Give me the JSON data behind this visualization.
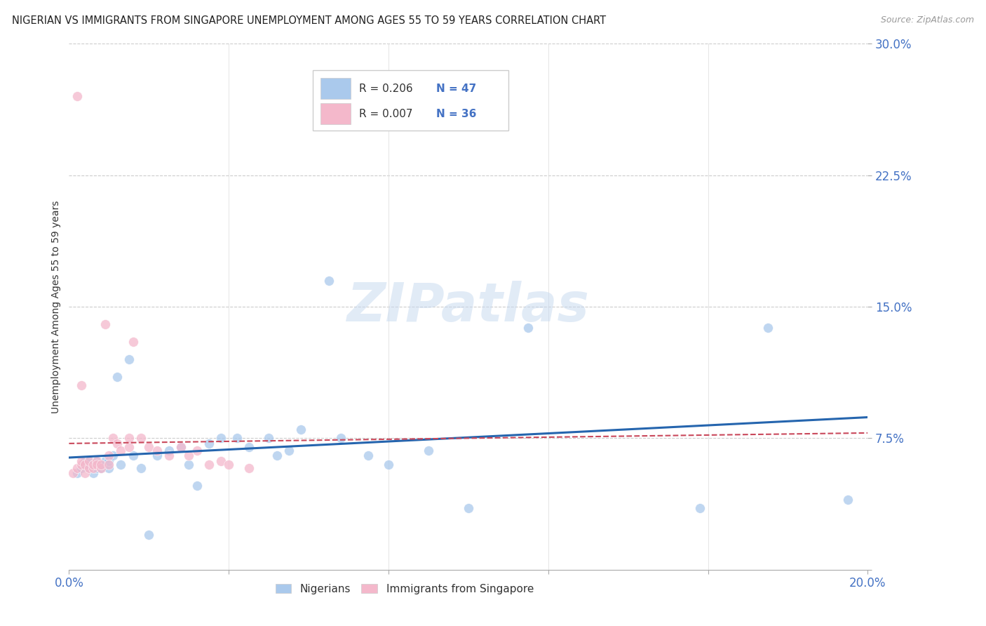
{
  "title": "NIGERIAN VS IMMIGRANTS FROM SINGAPORE UNEMPLOYMENT AMONG AGES 55 TO 59 YEARS CORRELATION CHART",
  "source": "Source: ZipAtlas.com",
  "ylabel": "Unemployment Among Ages 55 to 59 years",
  "xlim": [
    0.0,
    0.2
  ],
  "ylim": [
    0.0,
    0.3
  ],
  "xticks": [
    0.0,
    0.04,
    0.08,
    0.12,
    0.16,
    0.2
  ],
  "xticklabels": [
    "0.0%",
    "",
    "",
    "",
    "",
    "20.0%"
  ],
  "yticks": [
    0.0,
    0.075,
    0.15,
    0.225,
    0.3
  ],
  "yticklabels": [
    "",
    "7.5%",
    "15.0%",
    "22.5%",
    "30.0%"
  ],
  "nigerians_R": 0.206,
  "nigerians_N": 47,
  "singapore_R": 0.007,
  "singapore_N": 36,
  "nigerians_color": "#aac9ec",
  "singapore_color": "#f4b8cb",
  "trend_nigerian_color": "#2565ae",
  "trend_singapore_color": "#c9485b",
  "background_color": "#ffffff",
  "watermark": "ZIPatlas",
  "legend_label_nigerian": "Nigerians",
  "legend_label_singapore": "Immigrants from Singapore",
  "nig_x": [
    0.002,
    0.003,
    0.004,
    0.004,
    0.005,
    0.005,
    0.005,
    0.006,
    0.006,
    0.007,
    0.007,
    0.008,
    0.008,
    0.009,
    0.009,
    0.01,
    0.01,
    0.011,
    0.012,
    0.013,
    0.015,
    0.016,
    0.018,
    0.02,
    0.022,
    0.025,
    0.028,
    0.03,
    0.032,
    0.035,
    0.038,
    0.042,
    0.045,
    0.05,
    0.052,
    0.055,
    0.058,
    0.065,
    0.068,
    0.075,
    0.08,
    0.09,
    0.1,
    0.115,
    0.158,
    0.175,
    0.195
  ],
  "nig_y": [
    0.055,
    0.058,
    0.06,
    0.062,
    0.058,
    0.06,
    0.062,
    0.055,
    0.06,
    0.058,
    0.062,
    0.058,
    0.06,
    0.06,
    0.062,
    0.058,
    0.062,
    0.065,
    0.11,
    0.06,
    0.12,
    0.065,
    0.058,
    0.02,
    0.065,
    0.068,
    0.07,
    0.06,
    0.048,
    0.072,
    0.075,
    0.075,
    0.07,
    0.075,
    0.065,
    0.068,
    0.08,
    0.165,
    0.075,
    0.065,
    0.06,
    0.068,
    0.035,
    0.138,
    0.035,
    0.138,
    0.04
  ],
  "sing_x": [
    0.001,
    0.002,
    0.003,
    0.003,
    0.004,
    0.004,
    0.005,
    0.005,
    0.006,
    0.006,
    0.007,
    0.007,
    0.008,
    0.008,
    0.009,
    0.01,
    0.01,
    0.011,
    0.012,
    0.013,
    0.015,
    0.015,
    0.016,
    0.018,
    0.02,
    0.022,
    0.025,
    0.028,
    0.03,
    0.032,
    0.035,
    0.038,
    0.04,
    0.045,
    0.002,
    0.003
  ],
  "sing_y": [
    0.055,
    0.058,
    0.06,
    0.062,
    0.055,
    0.06,
    0.058,
    0.062,
    0.058,
    0.06,
    0.062,
    0.06,
    0.058,
    0.06,
    0.14,
    0.065,
    0.06,
    0.075,
    0.072,
    0.068,
    0.07,
    0.075,
    0.13,
    0.075,
    0.07,
    0.068,
    0.065,
    0.07,
    0.065,
    0.068,
    0.06,
    0.062,
    0.06,
    0.058,
    0.27,
    0.105
  ]
}
